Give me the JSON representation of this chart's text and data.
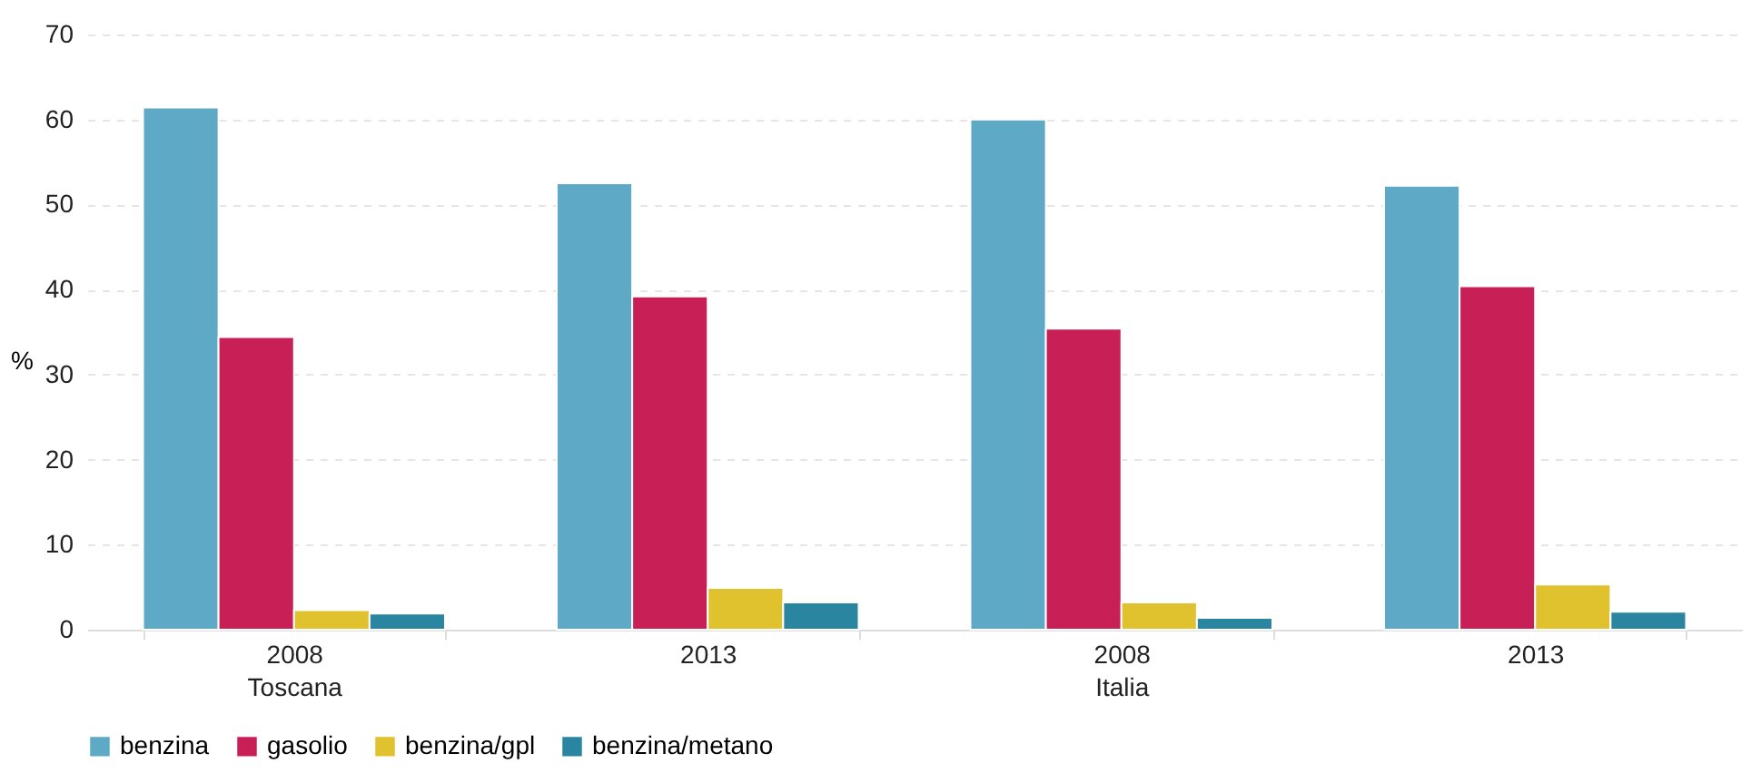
{
  "chart_data": {
    "type": "bar",
    "ylabel": "%",
    "categories": [
      "2008\nToscana",
      "2013",
      "2008\nItalia",
      "2013"
    ],
    "series": [
      {
        "name": "benzina",
        "color": "#5eaac6",
        "values": [
          61.4,
          52.5,
          60.0,
          52.2
        ]
      },
      {
        "name": "gasolio",
        "color": "#c91f57",
        "values": [
          34.4,
          39.2,
          35.4,
          40.4
        ]
      },
      {
        "name": "benzina/gpl",
        "color": "#e0c22e",
        "values": [
          2.3,
          4.9,
          3.2,
          5.3
        ]
      },
      {
        "name": "benzina/metano",
        "color": "#2a86a0",
        "values": [
          1.9,
          3.2,
          1.4,
          2.1
        ]
      }
    ],
    "ylim": [
      0,
      70
    ],
    "yticks": [
      0,
      10,
      20,
      30,
      40,
      50,
      60,
      70
    ],
    "grid": "y",
    "legend": "bottom"
  }
}
